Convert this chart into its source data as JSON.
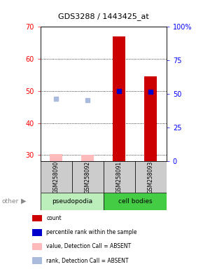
{
  "title": "GDS3288 / 1443425_at",
  "samples": [
    "GSM258090",
    "GSM258092",
    "GSM258091",
    "GSM258093"
  ],
  "ylim_left": [
    28,
    70
  ],
  "ylim_right": [
    0,
    100
  ],
  "yticks_left": [
    30,
    40,
    50,
    60,
    70
  ],
  "yticks_right": [
    0,
    25,
    50,
    75,
    100
  ],
  "count_values": [
    30.2,
    30.1,
    67.0,
    54.5
  ],
  "count_absent": [
    true,
    true,
    false,
    false
  ],
  "percentile_values": [
    46.5,
    45.5,
    52.5,
    51.8
  ],
  "percentile_absent": [
    true,
    true,
    false,
    false
  ],
  "bar_color_present": "#cc0000",
  "bar_color_absent": "#ffbbbb",
  "dot_color_present": "#0000cc",
  "dot_color_absent": "#aabbdd",
  "dot_size": 18,
  "bar_width": 0.4,
  "group_label_pseudopodia": "pseudopodia",
  "group_label_cell_bodies": "cell bodies",
  "group_bg_pseudopodia": "#bbeebb",
  "group_bg_cell_bodies": "#44cc44",
  "sample_bg": "#cccccc",
  "legend_items": [
    {
      "color": "#cc0000",
      "label": "count"
    },
    {
      "color": "#0000cc",
      "label": "percentile rank within the sample"
    },
    {
      "color": "#ffbbbb",
      "label": "value, Detection Call = ABSENT"
    },
    {
      "color": "#aabbdd",
      "label": "rank, Detection Call = ABSENT"
    }
  ]
}
